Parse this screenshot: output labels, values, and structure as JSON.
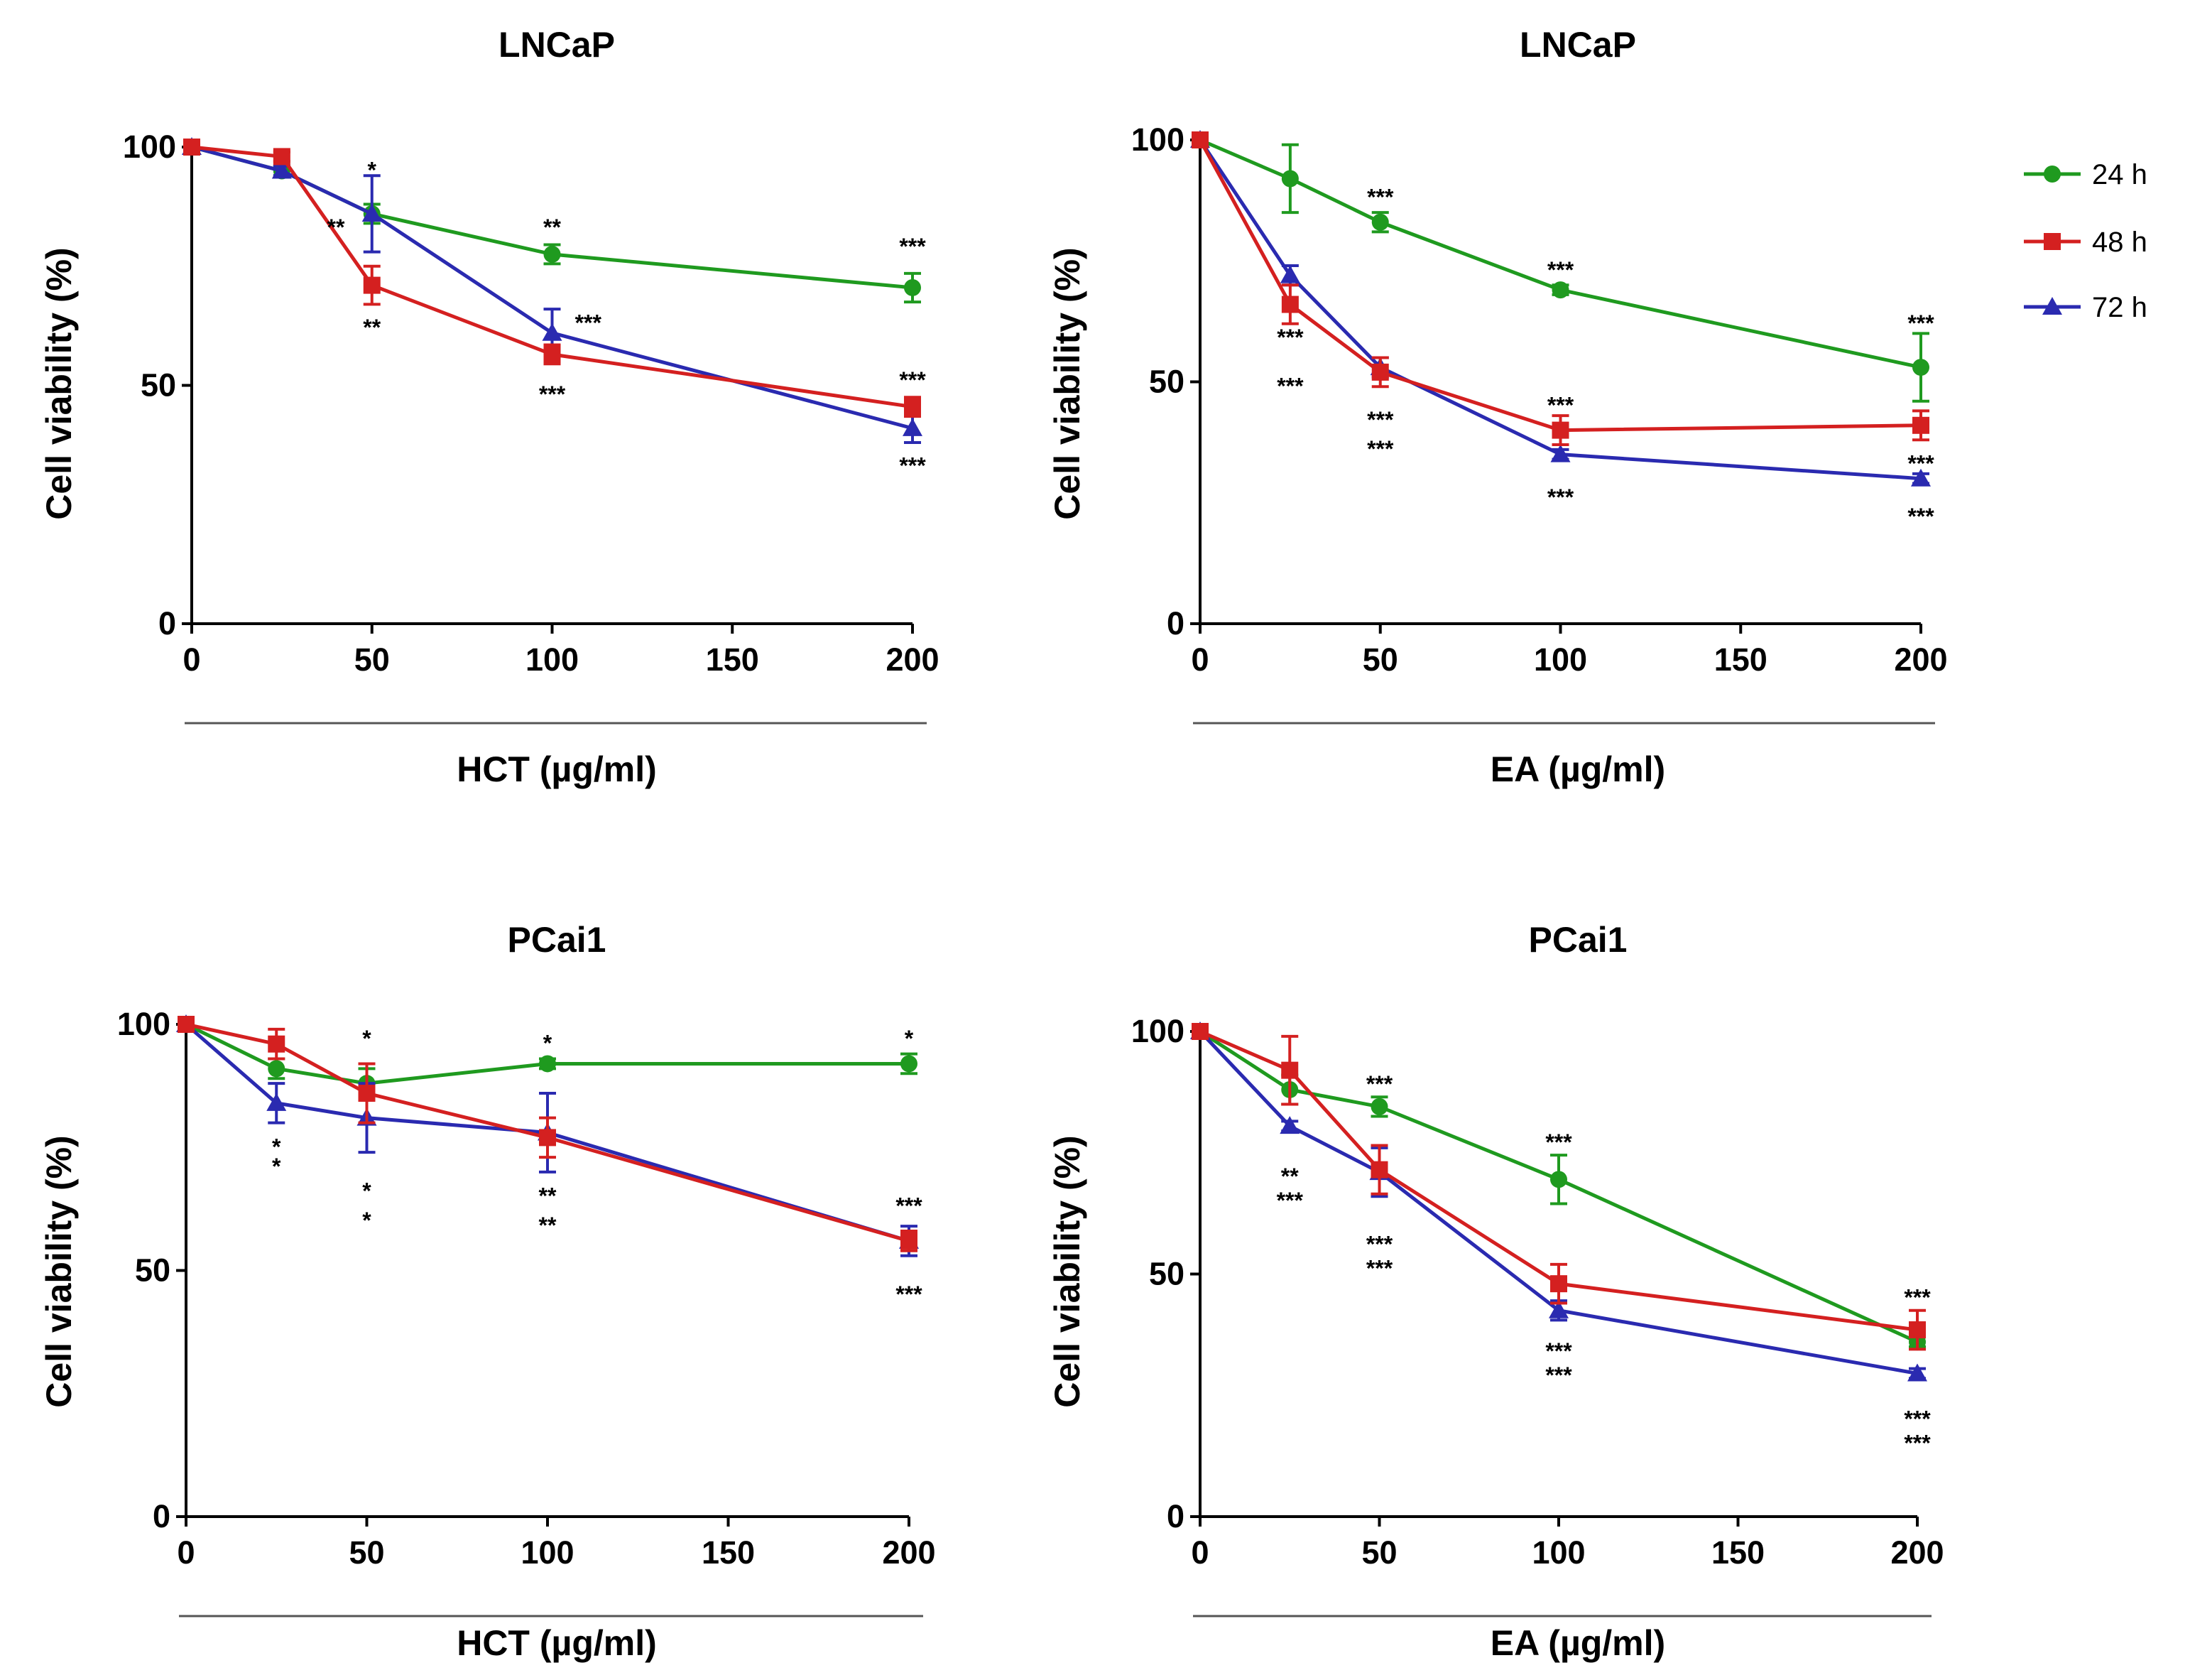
{
  "colors": {
    "24 h": "#1f9a1f",
    "48 h": "#d42020",
    "72 h": "#2a2ab0",
    "axis": "#000000"
  },
  "legend": [
    "24 h",
    "48 h",
    "72 h"
  ],
  "chart_data": [
    {
      "type": "line",
      "title": "LNCaP",
      "xlabel": "HCT (µg/ml)",
      "ylabel": "Cell viability (%)",
      "xticks": [
        "0",
        "50",
        "100",
        "150",
        "200"
      ],
      "yticks": [
        "0",
        "50",
        "100"
      ],
      "xlim": [
        0,
        200
      ],
      "ylim": [
        0,
        100
      ],
      "series": [
        {
          "name": "24 h",
          "marker": "circle",
          "x": [
            0,
            25,
            50,
            100,
            200
          ],
          "y": [
            100,
            95,
            86,
            77.5,
            70.5
          ],
          "err": [
            0,
            1,
            2,
            2,
            3
          ]
        },
        {
          "name": "48 h",
          "marker": "square",
          "x": [
            0,
            25,
            50,
            100,
            200
          ],
          "y": [
            100,
            98,
            71,
            56.5,
            45.5
          ],
          "err": [
            0,
            1,
            4,
            2,
            2
          ]
        },
        {
          "name": "72 h",
          "marker": "triangle",
          "x": [
            0,
            25,
            50,
            100,
            200
          ],
          "y": [
            100,
            95,
            86,
            61,
            41
          ],
          "err": [
            0,
            1,
            8,
            5,
            3
          ]
        }
      ],
      "annotations": [
        {
          "x": 50,
          "y": 95,
          "text": "*"
        },
        {
          "x": 100,
          "y": 83,
          "text": "**"
        },
        {
          "x": 200,
          "y": 79,
          "text": "***"
        },
        {
          "x": 40,
          "y": 83,
          "text": "**"
        },
        {
          "x": 50,
          "y": 62,
          "text": "**"
        },
        {
          "x": 110,
          "y": 63,
          "text": "***"
        },
        {
          "x": 100,
          "y": 48,
          "text": "***"
        },
        {
          "x": 200,
          "y": 51,
          "text": "***"
        },
        {
          "x": 200,
          "y": 33,
          "text": "***"
        }
      ]
    },
    {
      "type": "line",
      "title": "LNCaP",
      "xlabel": "EA (µg/ml)",
      "ylabel": "Cell viability (%)",
      "xticks": [
        "0",
        "50",
        "100",
        "150",
        "200"
      ],
      "yticks": [
        "0",
        "50",
        "100"
      ],
      "xlim": [
        0,
        200
      ],
      "ylim": [
        0,
        100
      ],
      "series": [
        {
          "name": "24 h",
          "marker": "circle",
          "x": [
            0,
            25,
            50,
            100,
            200
          ],
          "y": [
            100,
            92,
            83,
            69,
            53
          ],
          "err": [
            0,
            7,
            2,
            1,
            7
          ]
        },
        {
          "name": "48 h",
          "marker": "square",
          "x": [
            0,
            25,
            50,
            100,
            200
          ],
          "y": [
            100,
            66,
            52,
            40,
            41
          ],
          "err": [
            0,
            4,
            3,
            3,
            3
          ]
        },
        {
          "name": "72 h",
          "marker": "triangle",
          "x": [
            0,
            25,
            50,
            100,
            200
          ],
          "y": [
            100,
            72,
            53,
            35,
            30
          ],
          "err": [
            0,
            2,
            2,
            1,
            1
          ]
        }
      ],
      "annotations": [
        {
          "x": 50,
          "y": 88,
          "text": "***"
        },
        {
          "x": 100,
          "y": 73,
          "text": "***"
        },
        {
          "x": 200,
          "y": 62,
          "text": "***"
        },
        {
          "x": 25,
          "y": 59,
          "text": "***"
        },
        {
          "x": 25,
          "y": 49,
          "text": "***"
        },
        {
          "x": 50,
          "y": 42,
          "text": "***"
        },
        {
          "x": 50,
          "y": 36,
          "text": "***"
        },
        {
          "x": 100,
          "y": 45,
          "text": "***"
        },
        {
          "x": 100,
          "y": 26,
          "text": "***"
        },
        {
          "x": 200,
          "y": 33,
          "text": "***"
        },
        {
          "x": 200,
          "y": 22,
          "text": "***"
        }
      ]
    },
    {
      "type": "line",
      "title": "PCai1",
      "xlabel": "HCT (µg/ml)",
      "ylabel": "Cell viability (%)",
      "xticks": [
        "0",
        "50",
        "100",
        "150",
        "200"
      ],
      "yticks": [
        "0",
        "50",
        "100"
      ],
      "xlim": [
        0,
        200
      ],
      "ylim": [
        0,
        100
      ],
      "series": [
        {
          "name": "24 h",
          "marker": "circle",
          "x": [
            0,
            25,
            50,
            100,
            200
          ],
          "y": [
            100,
            91,
            88,
            92,
            92
          ],
          "err": [
            0,
            2,
            3,
            1,
            2
          ]
        },
        {
          "name": "48 h",
          "marker": "square",
          "x": [
            0,
            25,
            50,
            100,
            200
          ],
          "y": [
            100,
            96,
            86,
            77,
            56
          ],
          "err": [
            0,
            3,
            6,
            4,
            2
          ]
        },
        {
          "name": "72 h",
          "marker": "triangle",
          "x": [
            0,
            25,
            50,
            100,
            200
          ],
          "y": [
            100,
            84,
            81,
            78,
            56
          ],
          "err": [
            0,
            4,
            7,
            8,
            3
          ]
        }
      ],
      "annotations": [
        {
          "x": 50,
          "y": 97,
          "text": "*"
        },
        {
          "x": 100,
          "y": 96,
          "text": "*"
        },
        {
          "x": 200,
          "y": 97,
          "text": "*"
        },
        {
          "x": 25,
          "y": 75,
          "text": "*"
        },
        {
          "x": 25,
          "y": 71,
          "text": "*"
        },
        {
          "x": 50,
          "y": 66,
          "text": "*"
        },
        {
          "x": 50,
          "y": 60,
          "text": "*"
        },
        {
          "x": 100,
          "y": 65,
          "text": "**"
        },
        {
          "x": 100,
          "y": 59,
          "text": "**"
        },
        {
          "x": 200,
          "y": 63,
          "text": "***"
        },
        {
          "x": 200,
          "y": 45,
          "text": "***"
        }
      ]
    },
    {
      "type": "line",
      "title": "PCai1",
      "xlabel": "EA (µg/ml)",
      "ylabel": "Cell viability (%)",
      "xticks": [
        "0",
        "50",
        "100",
        "150",
        "200"
      ],
      "yticks": [
        "0",
        "50",
        "100"
      ],
      "xlim": [
        0,
        200
      ],
      "ylim": [
        0,
        100
      ],
      "series": [
        {
          "name": "24 h",
          "marker": "circle",
          "x": [
            0,
            25,
            50,
            100,
            200
          ],
          "y": [
            100,
            88,
            84.5,
            69.5,
            36
          ],
          "err": [
            0,
            3,
            2,
            5,
            1
          ]
        },
        {
          "name": "48 h",
          "marker": "square",
          "x": [
            0,
            25,
            50,
            100,
            200
          ],
          "y": [
            100,
            92,
            71.5,
            48,
            38.5
          ],
          "err": [
            0,
            7,
            5,
            4,
            4
          ]
        },
        {
          "name": "72 h",
          "marker": "triangle",
          "x": [
            0,
            25,
            50,
            100,
            200
          ],
          "y": [
            100,
            80.5,
            71,
            42.5,
            29.5
          ],
          "err": [
            0,
            1,
            5,
            2,
            1
          ]
        }
      ],
      "annotations": [
        {
          "x": 50,
          "y": 89,
          "text": "***"
        },
        {
          "x": 100,
          "y": 77,
          "text": "***"
        },
        {
          "x": 200,
          "y": 45,
          "text": "***"
        },
        {
          "x": 25,
          "y": 70,
          "text": "**"
        },
        {
          "x": 25,
          "y": 65,
          "text": "***"
        },
        {
          "x": 50,
          "y": 56,
          "text": "***"
        },
        {
          "x": 50,
          "y": 51,
          "text": "***"
        },
        {
          "x": 100,
          "y": 34,
          "text": "***"
        },
        {
          "x": 100,
          "y": 29,
          "text": "***"
        },
        {
          "x": 200,
          "y": 20,
          "text": "***"
        },
        {
          "x": 200,
          "y": 15,
          "text": "***"
        }
      ]
    }
  ]
}
